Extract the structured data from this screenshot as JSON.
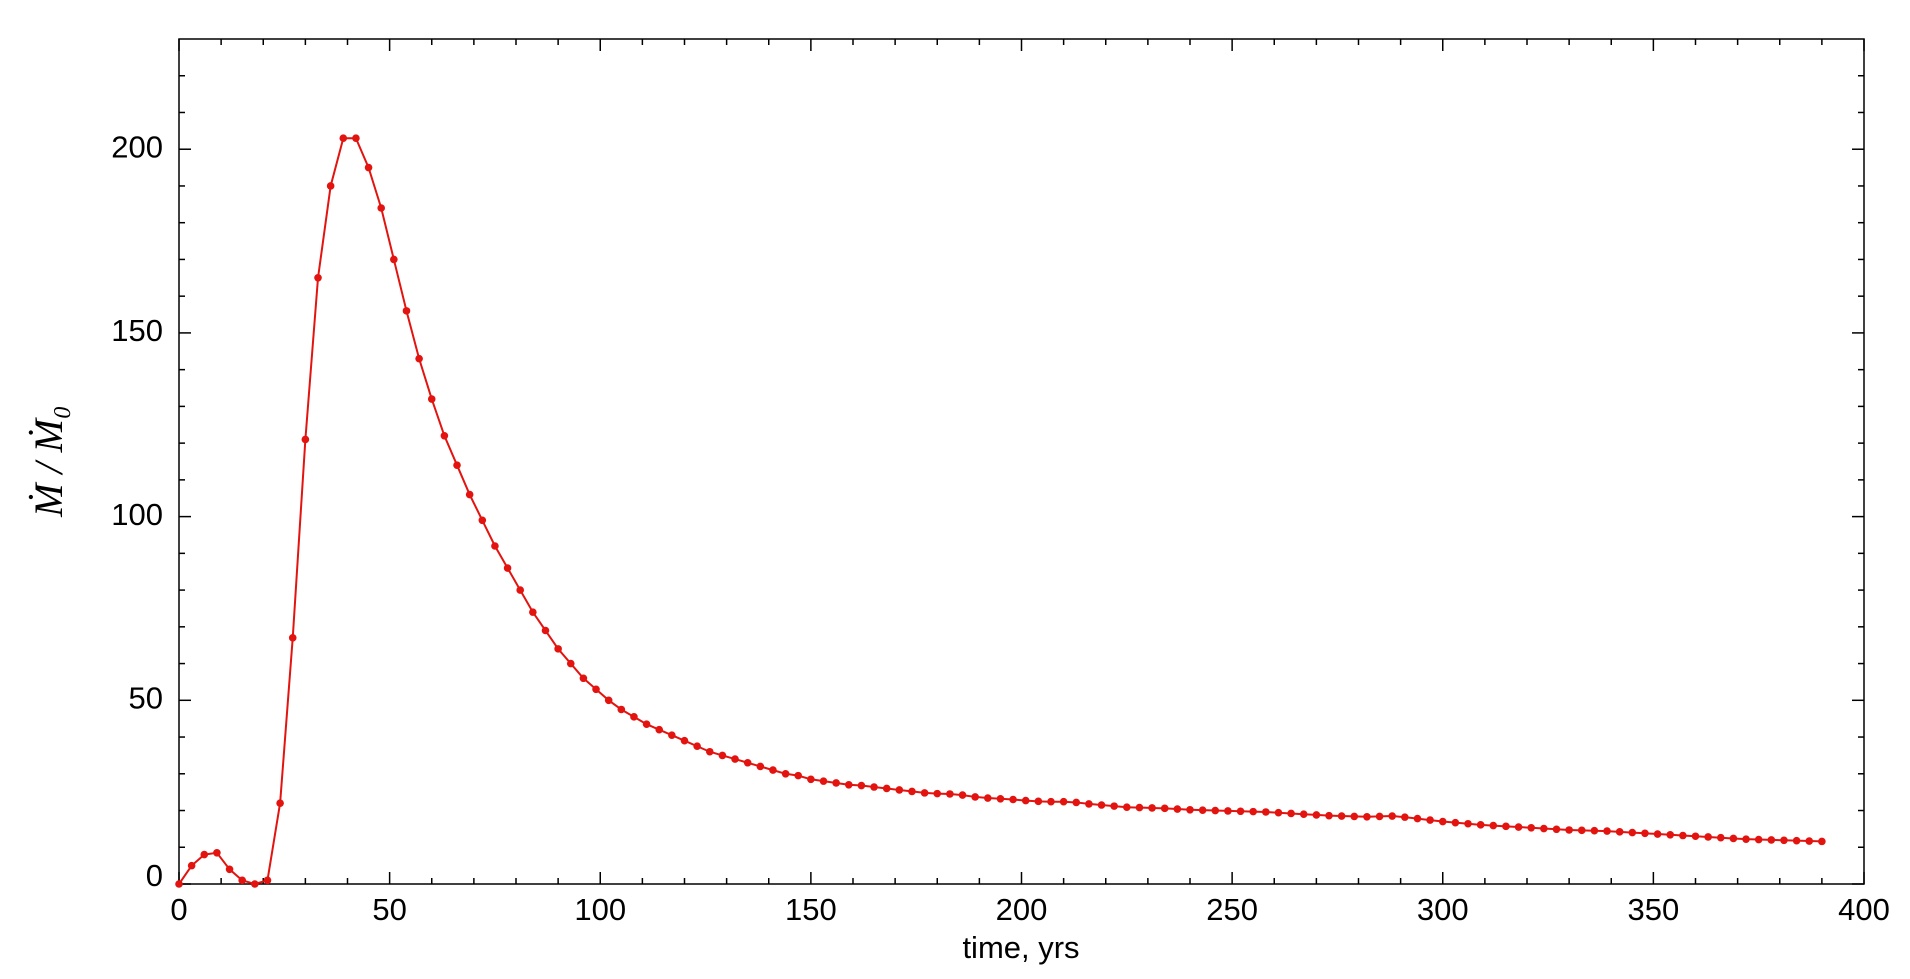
{
  "chart_data": {
    "type": "line",
    "x_label": "time, yrs",
    "y_label": "Ṁ / Ṁ₀",
    "xlim": [
      0,
      400
    ],
    "xticks": [
      0,
      50,
      100,
      150,
      200,
      250,
      300,
      350,
      400
    ],
    "ylim": [
      0,
      230
    ],
    "yticks": [
      0,
      50,
      100,
      150,
      200
    ],
    "grid": false,
    "x": [
      0,
      3,
      6,
      9,
      12,
      15,
      18,
      21,
      24,
      27,
      30,
      33,
      36,
      39,
      42,
      45,
      48,
      51,
      54,
      57,
      60,
      63,
      66,
      69,
      72,
      75,
      78,
      81,
      84,
      87,
      90,
      93,
      96,
      99,
      102,
      105,
      108,
      111,
      114,
      117,
      120,
      123,
      126,
      129,
      132,
      135,
      138,
      141,
      144,
      147,
      150,
      153,
      156,
      159,
      162,
      165,
      168,
      171,
      174,
      177,
      180,
      183,
      186,
      189,
      192,
      195,
      198,
      201,
      204,
      207,
      210,
      213,
      216,
      219,
      222,
      225,
      228,
      231,
      234,
      237,
      240,
      243,
      246,
      249,
      252,
      255,
      258,
      261,
      264,
      267,
      270,
      273,
      276,
      279,
      282,
      285,
      288,
      291,
      294,
      297,
      300,
      303,
      306,
      309,
      312,
      315,
      318,
      321,
      324,
      327,
      330,
      333,
      336,
      339,
      342,
      345,
      348,
      351,
      354,
      357,
      360,
      363,
      366,
      369,
      372,
      375,
      378,
      381,
      384,
      387,
      390
    ],
    "series": [
      {
        "color": "#e3140f",
        "values": [
          0,
          5,
          8,
          8.5,
          4,
          1,
          0,
          1,
          22,
          67,
          121,
          165,
          190,
          203,
          203,
          195,
          184,
          170,
          156,
          143,
          132,
          122,
          114,
          106,
          99,
          92,
          86,
          80,
          74,
          69,
          64,
          60,
          56,
          53,
          50,
          47.5,
          45.5,
          43.5,
          42,
          40.5,
          39,
          37.5,
          36,
          35,
          34,
          33,
          32,
          31,
          30,
          29.5,
          28.5,
          28,
          27.5,
          27,
          26.8,
          26.4,
          26,
          25.6,
          25.2,
          24.8,
          24.6,
          24.5,
          24.2,
          23.7,
          23.4,
          23.2,
          23,
          22.7,
          22.5,
          22.4,
          22.4,
          22.2,
          21.8,
          21.5,
          21.2,
          20.9,
          20.8,
          20.7,
          20.6,
          20.4,
          20.2,
          20.1,
          20,
          19.9,
          19.8,
          19.7,
          19.6,
          19.4,
          19.2,
          19,
          18.8,
          18.6,
          18.5,
          18.4,
          18.3,
          18.4,
          18.5,
          18.2,
          17.8,
          17.4,
          17,
          16.7,
          16.4,
          16.1,
          15.9,
          15.7,
          15.5,
          15.3,
          15.1,
          14.9,
          14.7,
          14.6,
          14.5,
          14.4,
          14.2,
          14,
          13.8,
          13.6,
          13.4,
          13.2,
          13,
          12.8,
          12.6,
          12.4,
          12.2,
          12.1,
          12,
          11.9,
          11.8,
          11.7,
          11.6
        ]
      }
    ]
  }
}
